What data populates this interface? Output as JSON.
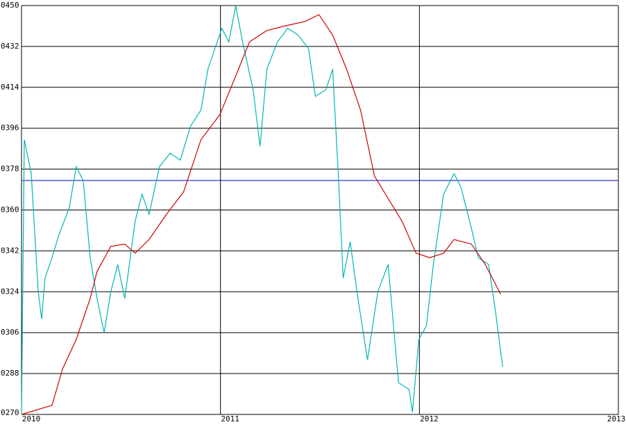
{
  "chart_data": {
    "type": "line",
    "xlim": [
      2010,
      2013
    ],
    "xticks": [
      2010,
      2011,
      2012,
      2013
    ],
    "ylim": [
      270,
      450
    ],
    "yticks": [
      {
        "value": 270,
        "label": "0270"
      },
      {
        "value": 288,
        "label": "0288"
      },
      {
        "value": 306,
        "label": "0306"
      },
      {
        "value": 324,
        "label": "0324"
      },
      {
        "value": 342,
        "label": "0342"
      },
      {
        "value": 360,
        "label": "0360"
      },
      {
        "value": 378,
        "label": "0378"
      },
      {
        "value": 396,
        "label": "0396"
      },
      {
        "value": 414,
        "label": "0414"
      },
      {
        "value": 432,
        "label": "0432"
      },
      {
        "value": 450,
        "label": "0450"
      }
    ],
    "grid": true,
    "reference_lines": [
      {
        "value": 373,
        "color": "#0000cc"
      }
    ],
    "series": [
      {
        "color": "#00b4b4",
        "x": [
          2010,
          2010.014,
          2010.049,
          2010.084,
          2010.101,
          2010.118,
          2010.153,
          2010.188,
          2010.24,
          2010.275,
          2010.31,
          2010.345,
          2010.38,
          2010.415,
          2010.449,
          2010.484,
          2010.519,
          2010.571,
          2010.606,
          2010.641,
          2010.693,
          2010.746,
          2010.798,
          2010.85,
          2010.902,
          2010.937,
          2010.972,
          2011.007,
          2011.042,
          2011.077,
          2011.111,
          2011.164,
          2011.199,
          2011.233,
          2011.286,
          2011.338,
          2011.39,
          2011.443,
          2011.477,
          2011.53,
          2011.564,
          2011.592,
          2011.617,
          2011.652,
          2011.686,
          2011.739,
          2011.791,
          2011.843,
          2011.895,
          2011.948,
          2011.965,
          2011.997,
          2012.035,
          2012.07,
          2012.122,
          2012.174,
          2012.209,
          2012.261,
          2012.296,
          2012.348,
          2012.383,
          2012.418
        ],
        "values": [
          270,
          391,
          376,
          324,
          312,
          330,
          339,
          349,
          361,
          379,
          373,
          339,
          321,
          306,
          324,
          336,
          321,
          355,
          367,
          358,
          379,
          385,
          382,
          397,
          404,
          422,
          431,
          440,
          434,
          450,
          434,
          413,
          388,
          422,
          434,
          440,
          437,
          431,
          410,
          413,
          422,
          376,
          330,
          346,
          324,
          294,
          324,
          336,
          284,
          281,
          271,
          303,
          309,
          336,
          367,
          376,
          370,
          352,
          339,
          336,
          315,
          291
        ]
      },
      {
        "color": "#cc0000",
        "x": [
          2010,
          2010.153,
          2010.206,
          2010.275,
          2010.345,
          2010.38,
          2010.449,
          2010.519,
          2010.571,
          2010.641,
          2010.728,
          2010.815,
          2010.902,
          2010.997,
          2011.077,
          2011.146,
          2011.233,
          2011.321,
          2011.425,
          2011.495,
          2011.564,
          2011.634,
          2011.704,
          2011.774,
          2011.843,
          2011.913,
          2011.983,
          2012.052,
          2012.122,
          2012.174,
          2012.261,
          2012.331,
          2012.408
        ],
        "values": [
          270,
          274,
          290,
          303,
          321,
          333,
          344,
          345,
          341,
          347,
          358,
          368,
          391,
          402,
          419,
          434,
          439,
          441,
          443,
          446,
          437,
          422,
          404,
          375,
          365,
          355,
          341,
          339,
          341,
          347,
          345,
          336,
          323
        ]
      }
    ]
  }
}
